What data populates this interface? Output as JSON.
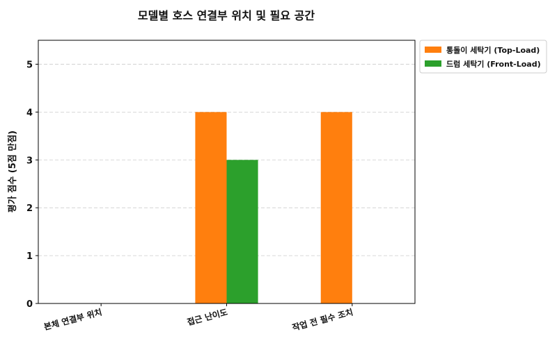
{
  "chart_data": {
    "type": "bar",
    "title": "모델별 호스 연결부 위치 및 필요 공간",
    "xlabel": "",
    "ylabel": "평가 점수 (5점 만점)",
    "categories": [
      "본체 연결부 위치",
      "접근 난이도",
      "작업 전 필수 조치"
    ],
    "series": [
      {
        "name": "통돌이 세탁기 (Top-Load)",
        "values": [
          0,
          4,
          4
        ],
        "color": "#ff7f0e"
      },
      {
        "name": "드럼 세탁기 (Front-Load)",
        "values": [
          0,
          3,
          0
        ],
        "color": "#2ca02c"
      }
    ],
    "yticks": [
      0,
      1,
      2,
      3,
      4,
      5
    ],
    "ylim": [
      0,
      5.5
    ],
    "grid": true,
    "grid_axis": "y",
    "legend_position": "outside-top-right"
  }
}
